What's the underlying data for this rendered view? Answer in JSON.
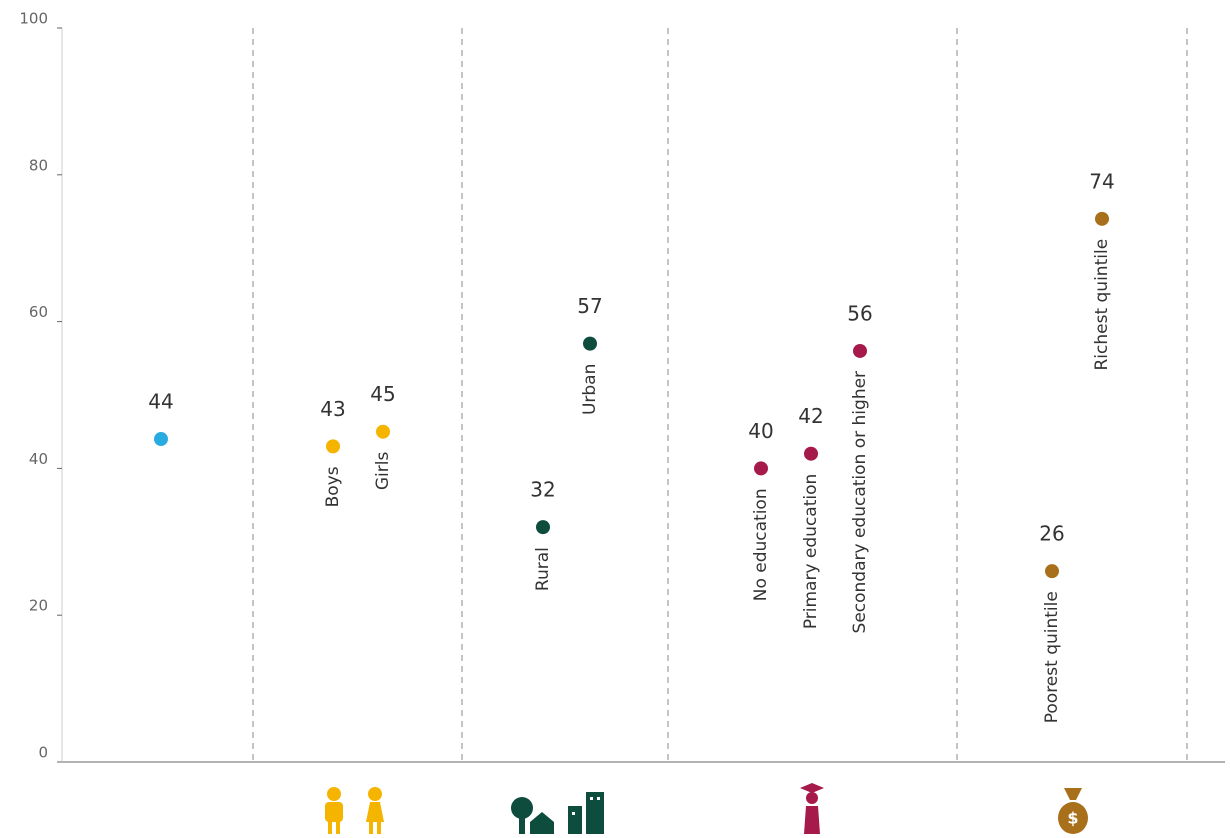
{
  "chart_data": {
    "type": "dot",
    "categories": [
      null,
      "Boys",
      "Girls",
      "Rural",
      "Urban",
      "No education",
      "Primary education",
      "Secondary education or higher",
      "Poorest quintile",
      "Richest quintile"
    ],
    "values": [
      44,
      43,
      45,
      32,
      57,
      40,
      42,
      56,
      26,
      74
    ],
    "colors": [
      "#29abe2",
      "#f5b400",
      "#f5b400",
      "#0e4d3e",
      "#0e4d3e",
      "#a6194b",
      "#a6194b",
      "#a6194b",
      "#a8701a",
      "#a8701a"
    ],
    "ylim": [
      0,
      100
    ],
    "yticks": [
      0,
      20,
      40,
      60,
      80,
      100
    ]
  }
}
